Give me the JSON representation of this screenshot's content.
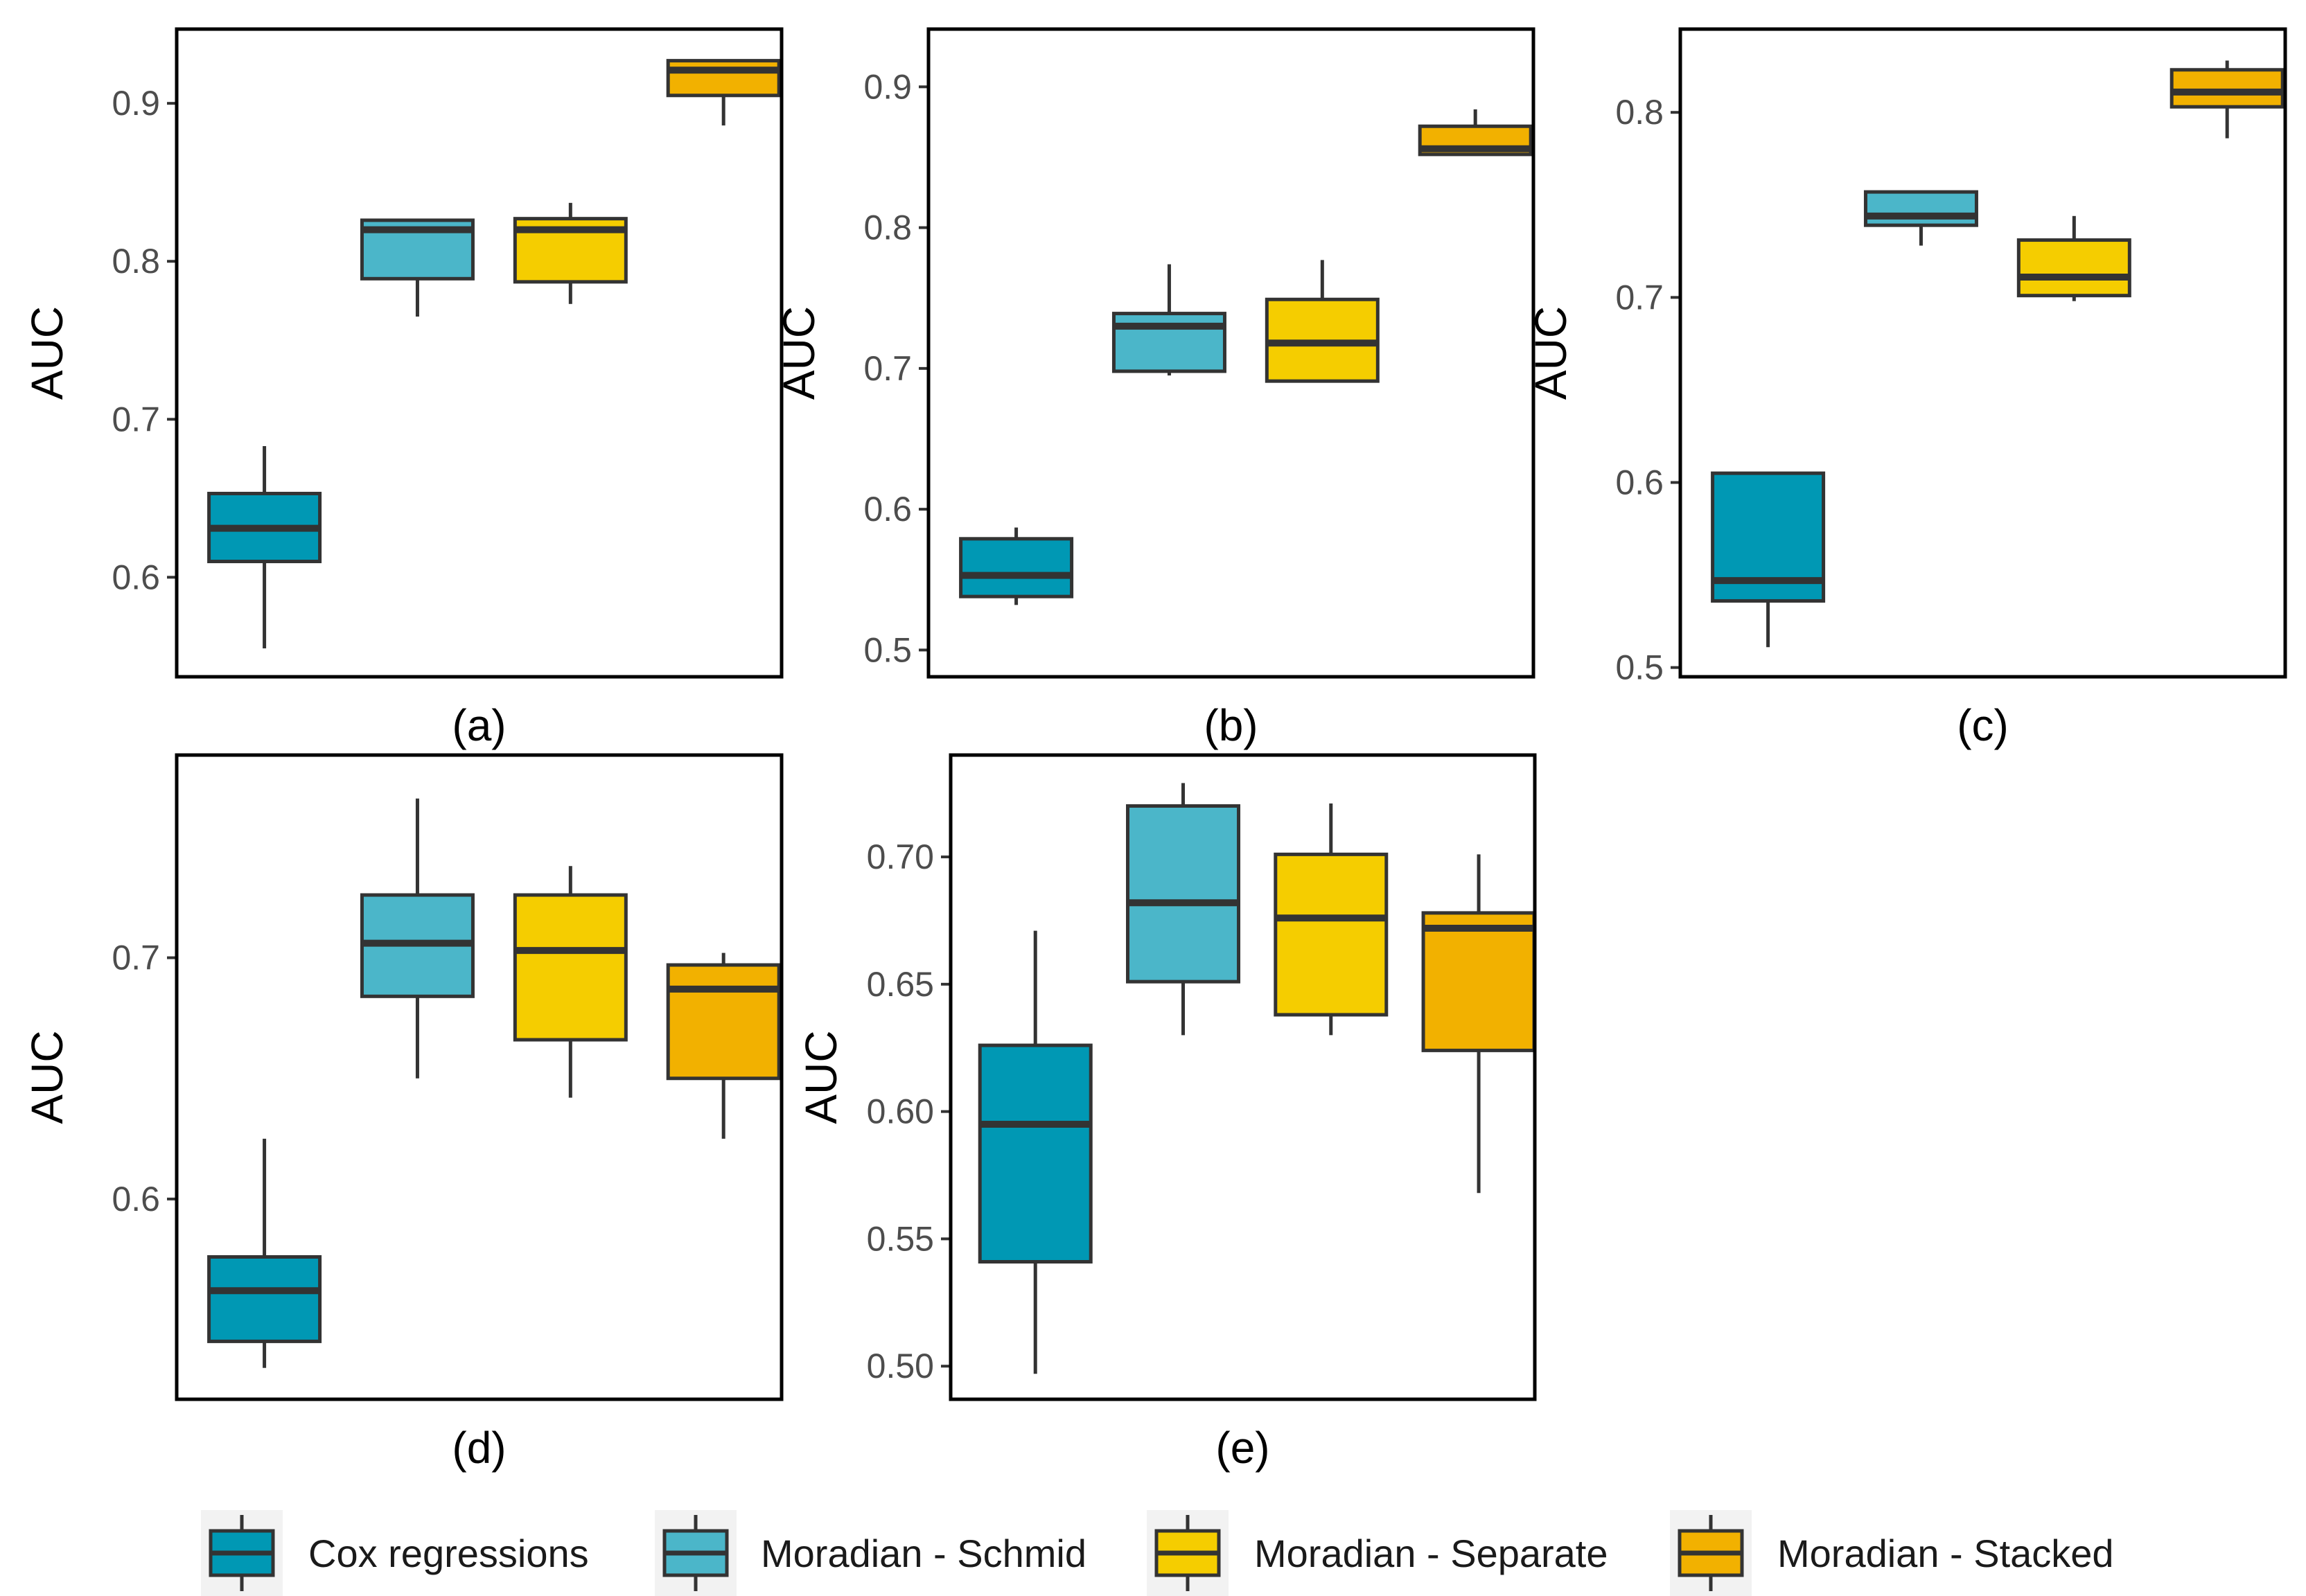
{
  "colors": {
    "box_outline": "#333333",
    "panel_border": "#000000",
    "tick_text": "#4d4d4d"
  },
  "legend": [
    {
      "label": "Cox regressions",
      "color": "#0098b4"
    },
    {
      "label": "Moradian - Schmid",
      "color": "#4bb6c9"
    },
    {
      "label": "Moradian - Separate",
      "color": "#f5cd00"
    },
    {
      "label": "Moradian - Stacked",
      "color": "#f2b100"
    }
  ],
  "chart_data": [
    {
      "type": "boxplot",
      "caption": "(a)",
      "ylabel": "AUC",
      "ylim": [
        0.537,
        0.947
      ],
      "yticks": [
        0.6,
        0.7,
        0.8,
        0.9
      ],
      "ytick_labels": [
        "0.6",
        "0.7",
        "0.8",
        "0.9"
      ],
      "series": [
        {
          "group": "Cox regressions",
          "whisker_low": 0.555,
          "q1": 0.61,
          "median": 0.631,
          "q3": 0.653,
          "whisker_high": 0.683
        },
        {
          "group": "Moradian - Schmid",
          "whisker_low": 0.765,
          "q1": 0.789,
          "median": 0.82,
          "q3": 0.826,
          "whisker_high": 0.826
        },
        {
          "group": "Moradian - Separate",
          "whisker_low": 0.773,
          "q1": 0.787,
          "median": 0.82,
          "q3": 0.827,
          "whisker_high": 0.837
        },
        {
          "group": "Moradian - Stacked",
          "whisker_low": 0.886,
          "q1": 0.905,
          "median": 0.921,
          "q3": 0.927,
          "whisker_high": 0.927
        }
      ]
    },
    {
      "type": "boxplot",
      "caption": "(b)",
      "ylabel": "AUC",
      "ylim": [
        0.481,
        0.941
      ],
      "yticks": [
        0.5,
        0.6,
        0.7,
        0.8,
        0.9
      ],
      "ytick_labels": [
        "0.5",
        "0.6",
        "0.7",
        "0.8",
        "0.9"
      ],
      "series": [
        {
          "group": "Cox regressions",
          "whisker_low": 0.532,
          "q1": 0.538,
          "median": 0.553,
          "q3": 0.579,
          "whisker_high": 0.587
        },
        {
          "group": "Moradian - Schmid",
          "whisker_low": 0.695,
          "q1": 0.698,
          "median": 0.73,
          "q3": 0.739,
          "whisker_high": 0.774
        },
        {
          "group": "Moradian - Separate",
          "whisker_low": 0.69,
          "q1": 0.691,
          "median": 0.718,
          "q3": 0.749,
          "whisker_high": 0.777
        },
        {
          "group": "Moradian - Stacked",
          "whisker_low": 0.851,
          "q1": 0.852,
          "median": 0.856,
          "q3": 0.872,
          "whisker_high": 0.884
        }
      ]
    },
    {
      "type": "boxplot",
      "caption": "(c)",
      "ylabel": "AUC",
      "ylim": [
        0.495,
        0.845
      ],
      "yticks": [
        0.5,
        0.6,
        0.7,
        0.8
      ],
      "ytick_labels": [
        "0.5",
        "0.6",
        "0.7",
        "0.8"
      ],
      "series": [
        {
          "group": "Cox regressions",
          "whisker_low": 0.511,
          "q1": 0.536,
          "median": 0.547,
          "q3": 0.605,
          "whisker_high": 0.605
        },
        {
          "group": "Moradian - Schmid",
          "whisker_low": 0.728,
          "q1": 0.739,
          "median": 0.744,
          "q3": 0.757,
          "whisker_high": 0.757
        },
        {
          "group": "Moradian - Separate",
          "whisker_low": 0.698,
          "q1": 0.701,
          "median": 0.711,
          "q3": 0.731,
          "whisker_high": 0.744
        },
        {
          "group": "Moradian - Stacked",
          "whisker_low": 0.786,
          "q1": 0.803,
          "median": 0.811,
          "q3": 0.823,
          "whisker_high": 0.828
        }
      ]
    },
    {
      "type": "boxplot",
      "caption": "(d)",
      "ylabel": "AUC",
      "ylim": [
        0.517,
        0.784
      ],
      "yticks": [
        0.6,
        0.7
      ],
      "ytick_labels": [
        "0.6",
        "0.7"
      ],
      "series": [
        {
          "group": "Cox regressions",
          "whisker_low": 0.53,
          "q1": 0.541,
          "median": 0.562,
          "q3": 0.576,
          "whisker_high": 0.625
        },
        {
          "group": "Moradian - Schmid",
          "whisker_low": 0.65,
          "q1": 0.684,
          "median": 0.706,
          "q3": 0.726,
          "whisker_high": 0.766
        },
        {
          "group": "Moradian - Separate",
          "whisker_low": 0.642,
          "q1": 0.666,
          "median": 0.703,
          "q3": 0.726,
          "whisker_high": 0.738
        },
        {
          "group": "Moradian - Stacked",
          "whisker_low": 0.625,
          "q1": 0.65,
          "median": 0.687,
          "q3": 0.697,
          "whisker_high": 0.702
        }
      ]
    },
    {
      "type": "boxplot",
      "caption": "(e)",
      "ylabel": "AUC",
      "ylim": [
        0.487,
        0.74
      ],
      "yticks": [
        0.5,
        0.55,
        0.6,
        0.65,
        0.7
      ],
      "ytick_labels": [
        "0.50",
        "0.55",
        "0.60",
        "0.65",
        "0.70"
      ],
      "series": [
        {
          "group": "Cox regressions",
          "whisker_low": 0.497,
          "q1": 0.541,
          "median": 0.595,
          "q3": 0.626,
          "whisker_high": 0.671
        },
        {
          "group": "Moradian - Schmid",
          "whisker_low": 0.63,
          "q1": 0.651,
          "median": 0.682,
          "q3": 0.72,
          "whisker_high": 0.729
        },
        {
          "group": "Moradian - Separate",
          "whisker_low": 0.63,
          "q1": 0.638,
          "median": 0.676,
          "q3": 0.701,
          "whisker_high": 0.721
        },
        {
          "group": "Moradian - Stacked",
          "whisker_low": 0.568,
          "q1": 0.624,
          "median": 0.672,
          "q3": 0.678,
          "whisker_high": 0.701
        }
      ]
    }
  ]
}
